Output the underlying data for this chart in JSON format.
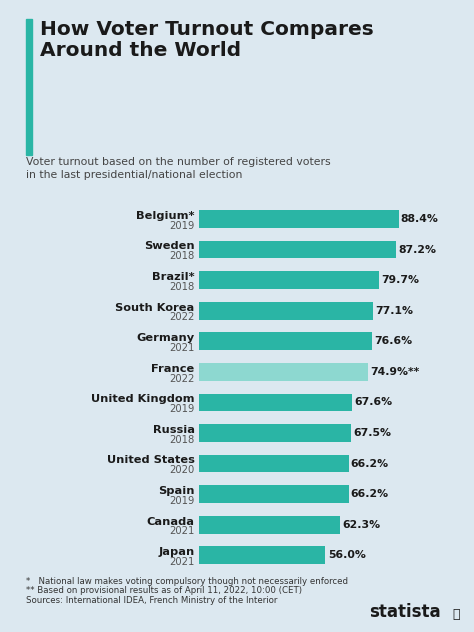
{
  "title": "How Voter Turnout Compares\nAround the World",
  "subtitle": "Voter turnout based on the number of registered voters\nin the last presidential/national election",
  "countries": [
    "Belgium*",
    "Sweden",
    "Brazil*",
    "South Korea",
    "Germany",
    "France",
    "United Kingdom",
    "Russia",
    "United States",
    "Spain",
    "Canada",
    "Japan"
  ],
  "years": [
    "2019",
    "2018",
    "2018",
    "2022",
    "2021",
    "2022",
    "2019",
    "2018",
    "2020",
    "2019",
    "2021",
    "2021"
  ],
  "values": [
    88.4,
    87.2,
    79.7,
    77.1,
    76.6,
    74.9,
    67.6,
    67.5,
    66.2,
    66.2,
    62.3,
    56.0
  ],
  "labels": [
    "88.4%",
    "87.2%",
    "79.7%",
    "77.1%",
    "76.6%",
    "74.9%**",
    "67.6%",
    "67.5%",
    "66.2%",
    "66.2%",
    "62.3%",
    "56.0%"
  ],
  "bar_color_dark": "#2ab5a5",
  "bar_color_light": "#8dd8d0",
  "france_index": 5,
  "background_color": "#dce8f0",
  "title_color": "#1a1a1a",
  "subtitle_color": "#444444",
  "bar_label_color": "#1a1a1a",
  "footnote1": "*   National law makes voting compulsory though not necessarily enforced",
  "footnote2": "** Based on provisional results as of April 11, 2022, 10:00 (CET)",
  "footnote3": "Sources: International IDEA, French Ministry of the Interior",
  "title_bar_color": "#2ab5a5",
  "year_color": "#555555"
}
